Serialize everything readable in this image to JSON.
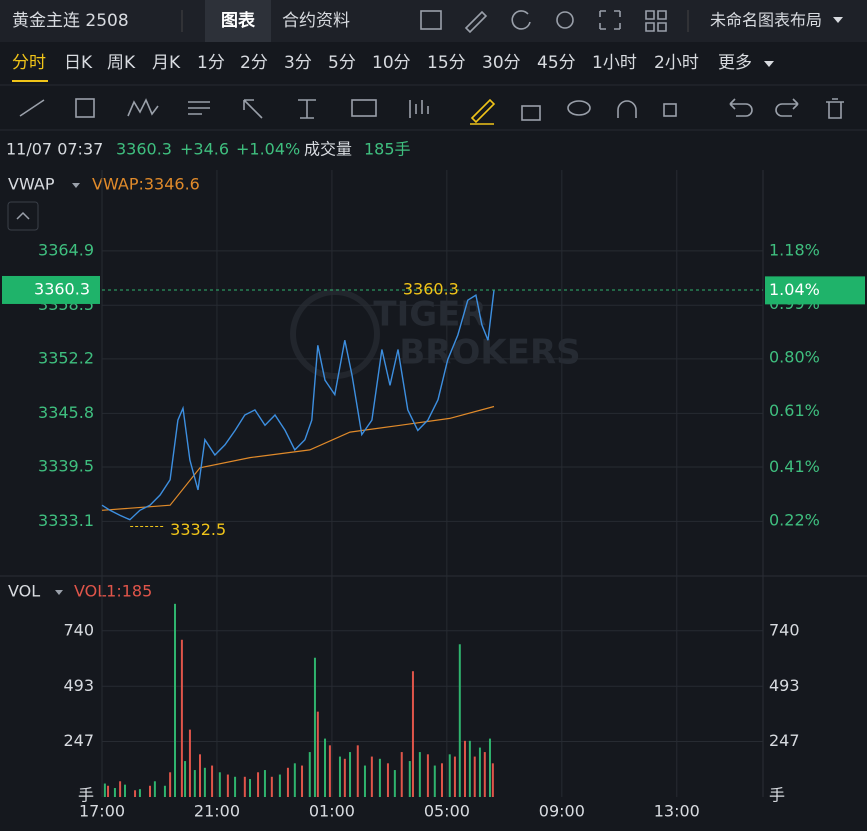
{
  "header": {
    "title": "黄金主连 2508",
    "tabs": [
      "图表",
      "合约资料"
    ],
    "layout_name": "未命名图表布局"
  },
  "timeframes": [
    "分时",
    "日K",
    "周K",
    "月K",
    "1分",
    "2分",
    "3分",
    "5分",
    "10分",
    "15分",
    "30分",
    "45分",
    "1小时",
    "2小时",
    "更多"
  ],
  "quote": {
    "time": "11/07 07:37",
    "price": "3360.3",
    "change": "+34.6",
    "pct": "+1.04%",
    "volume_label": "成交量",
    "volume": "185手"
  },
  "watermark": [
    "TIGER",
    "BROKERS"
  ],
  "chart_data": [
    {
      "type": "line",
      "indicator": {
        "name": "VWAP",
        "value_label": "VWAP:3346.6"
      },
      "xlim": [
        0,
        23
      ],
      "xticks": [
        {
          "value": 0,
          "label": "17:00"
        },
        {
          "value": 4,
          "label": "21:00"
        },
        {
          "value": 8,
          "label": "01:00"
        },
        {
          "value": 12,
          "label": "05:00"
        },
        {
          "value": 16,
          "label": "09:00"
        },
        {
          "value": 20,
          "label": "13:00"
        }
      ],
      "ylim": [
        3326.8,
        3374.4
      ],
      "yticks": [
        3333.1,
        3339.5,
        3345.8,
        3352.2,
        3358.5,
        3364.9
      ],
      "y2lim": [
        0.028,
        1.468
      ],
      "y2ticks": [
        {
          "value": 0.22,
          "label": "0.22%"
        },
        {
          "value": 0.41,
          "label": "0.41%"
        },
        {
          "value": 0.61,
          "label": "0.61%"
        },
        {
          "value": 0.8,
          "label": "0.80%"
        },
        {
          "value": 0.99,
          "label": "0.99%"
        },
        {
          "value": 1.18,
          "label": "1.18%"
        }
      ],
      "grid": true,
      "last_price": 3360.3,
      "last_pct": {
        "value": 1.04,
        "label": "1.04%"
      },
      "high": {
        "x": 13.67,
        "value": 3360.3
      },
      "low": {
        "x": 0.98,
        "value": 3332.5
      },
      "series": [
        {
          "name": "price",
          "color": "#3d8fe0",
          "x": [
            0,
            0.28,
            0.63,
            0.97,
            1.32,
            1.67,
            2.02,
            2.37,
            2.64,
            2.82,
            3.06,
            3.34,
            3.58,
            3.93,
            4.28,
            4.63,
            4.97,
            5.32,
            5.67,
            6.02,
            6.37,
            6.71,
            7.06,
            7.3,
            7.51,
            7.76,
            8.1,
            8.45,
            8.7,
            9.04,
            9.39,
            9.74,
            10.02,
            10.3,
            10.64,
            10.99,
            11.34,
            11.69,
            12.03,
            12.38,
            12.73,
            13.01,
            13.22,
            13.43,
            13.64
          ],
          "values": [
            3335.0,
            3334.4,
            3333.8,
            3333.3,
            3334.4,
            3335.0,
            3336.2,
            3338.0,
            3345.0,
            3346.4,
            3340.3,
            3336.8,
            3342.7,
            3340.9,
            3342.1,
            3343.8,
            3345.6,
            3346.2,
            3344.4,
            3345.6,
            3343.8,
            3341.5,
            3342.7,
            3345.0,
            3353.8,
            3349.7,
            3348.0,
            3354.4,
            3350.3,
            3343.3,
            3345.0,
            3353.3,
            3349.1,
            3353.3,
            3346.2,
            3343.8,
            3345.0,
            3347.4,
            3352.1,
            3355.0,
            3359.1,
            3359.7,
            3356.2,
            3354.4,
            3360.3
          ]
        },
        {
          "name": "VWAP",
          "color": "#e08a2a",
          "x": [
            0,
            2.37,
            3.41,
            5.15,
            7.23,
            8.63,
            10.37,
            12.1,
            13.64
          ],
          "values": [
            3334.4,
            3335.0,
            3339.4,
            3340.6,
            3341.5,
            3343.6,
            3344.4,
            3345.2,
            3346.6
          ]
        }
      ]
    },
    {
      "type": "bar",
      "indicator": {
        "name": "VOL",
        "value_label": "VOL1:185"
      },
      "xlim": [
        0,
        23
      ],
      "ylim": [
        0,
        975
      ],
      "yticks": [
        247,
        493,
        740
      ],
      "y_unit": "手",
      "series": [
        {
          "name": "up",
          "color": "#2fb46e",
          "x": [
            0.1,
            0.45,
            0.8,
            1.32,
            1.84,
            2.19,
            2.54,
            2.89,
            3.23,
            3.58,
            4.1,
            4.63,
            5.15,
            5.67,
            6.19,
            6.71,
            7.23,
            7.41,
            7.76,
            8.28,
            8.63,
            9.15,
            9.67,
            10.19,
            10.71,
            11.06,
            11.58,
            12.1,
            12.45,
            12.8,
            13.15,
            13.5
          ],
          "values": [
            60,
            40,
            55,
            35,
            70,
            50,
            860,
            160,
            120,
            130,
            110,
            90,
            80,
            120,
            100,
            150,
            200,
            620,
            260,
            180,
            200,
            140,
            170,
            120,
            160,
            200,
            140,
            190,
            680,
            250,
            220,
            260
          ]
        },
        {
          "name": "down",
          "color": "#e0554a",
          "x": [
            0.21,
            0.63,
            1.15,
            1.67,
            2.37,
            2.78,
            3.06,
            3.41,
            3.83,
            4.38,
            4.97,
            5.43,
            5.91,
            6.47,
            6.96,
            7.51,
            7.93,
            8.45,
            8.9,
            9.39,
            9.95,
            10.43,
            10.82,
            11.34,
            11.83,
            12.28,
            12.63,
            12.97,
            13.32,
            13.6
          ],
          "values": [
            50,
            70,
            30,
            50,
            110,
            700,
            300,
            190,
            140,
            100,
            90,
            110,
            90,
            130,
            140,
            380,
            230,
            170,
            230,
            180,
            150,
            200,
            560,
            190,
            150,
            180,
            250,
            180,
            200,
            150
          ]
        }
      ]
    }
  ]
}
